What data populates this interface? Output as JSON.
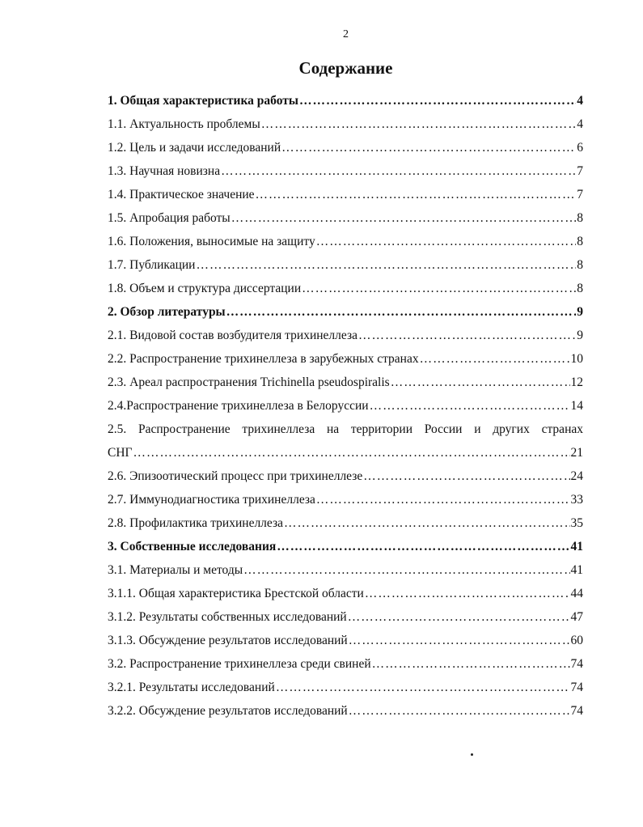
{
  "page_number": "2",
  "title": "Содержание",
  "toc": [
    {
      "text": "1.  Общая характеристика работы",
      "page": "4",
      "bold": true
    },
    {
      "text": "1.1. Актуальность проблемы",
      "page": "4"
    },
    {
      "text": "1.2. Цель и задачи исследований",
      "page": "6"
    },
    {
      "text": "1.3. Научная новизна",
      "page": "7"
    },
    {
      "text": "1.4. Практическое значение",
      "page": "7"
    },
    {
      "text": "1.5. Апробация работы",
      "page": "8"
    },
    {
      "text": "1.6. Положения, выносимые на защиту",
      "page": "8"
    },
    {
      "text": "1.7. Публикации",
      "page": "8"
    },
    {
      "text": "1.8. Объем и структура диссертации",
      "page": "8"
    },
    {
      "text": "2.  Обзор литературы",
      "page": "9",
      "bold": true
    },
    {
      "text": "2.1. Видовой состав возбудителя трихинеллеза",
      "page": "9"
    },
    {
      "text": "2.2. Распространение трихинеллеза в зарубежных странах",
      "page": "10"
    },
    {
      "text": "2.3. Ареал распространения   Trichinella  pseudospiralis",
      "page": "12"
    },
    {
      "text": "2.4.Распространение трихинеллеза в Белоруссии",
      "page": "14"
    },
    {
      "text": "2.5. Распространение трихинеллеза на территории России и других странах",
      "continuation": "СНГ",
      "page": "21"
    },
    {
      "text": "2.6. Эпизоотический процесс при трихинеллезе",
      "page": "24"
    },
    {
      "text": "2.7. Иммунодиагностика трихинеллеза",
      "page": "33"
    },
    {
      "text": "2.8. Профилактика трихинеллеза",
      "page": "35"
    },
    {
      "text": "3. Собственные исследования",
      "page": "41",
      "bold": true
    },
    {
      "text": "3.1. Материалы и методы",
      "page": "41"
    },
    {
      "text": "3.1.1. Общая характеристика Брестской области",
      "page": "44"
    },
    {
      "text": "3.1.2. Результаты собственных исследований",
      "page": "47"
    },
    {
      "text": "3.1.3. Обсуждение результатов исследований ",
      "page": "60"
    },
    {
      "text": "3.2. Распространение трихинеллеза среди свиней",
      "page": "74"
    },
    {
      "text": "3.2.1. Результаты  исследований",
      "page": "74"
    },
    {
      "text": "3.2.2. Обсуждение результатов исследований ",
      "page": "74"
    }
  ]
}
